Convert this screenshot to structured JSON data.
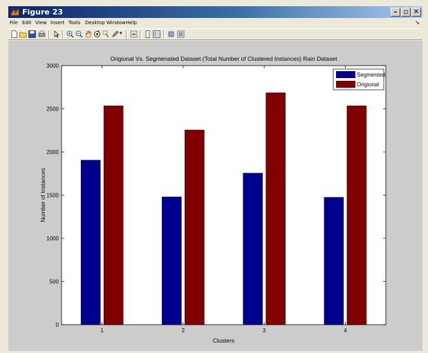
{
  "window": {
    "title": "Figure 23",
    "colors": {
      "titlebar_start": "#0a246a",
      "titlebar_end": "#a6caf0",
      "figure_bg": "#cccccc"
    }
  },
  "menu": {
    "items": [
      "File",
      "Edit",
      "View",
      "Insert",
      "Tools",
      "Desktop",
      "Window",
      "Help"
    ]
  },
  "toolbar": {
    "icons": [
      "new-figure-icon",
      "open-file-icon",
      "save-icon",
      "print-icon",
      "pointer-icon",
      "zoom-in-icon",
      "zoom-out-icon",
      "pan-icon",
      "rotate-icon",
      "data-cursor-icon",
      "brush-icon",
      "link-icon",
      "colorbar-icon",
      "legend-icon",
      "hide-plot-tools-icon",
      "show-plot-tools-icon"
    ]
  },
  "chart_data": {
    "type": "bar",
    "title": "Origional Vs. Segmenated Dataset (Total Number of Clustered Instances) Rain Dataset",
    "xlabel": "Clusters",
    "ylabel": "Number of Instances",
    "categories": [
      "1",
      "2",
      "3",
      "4"
    ],
    "series": [
      {
        "name": "Segmented",
        "color": "#00008f",
        "values": [
          1905,
          1480,
          1755,
          1475
        ]
      },
      {
        "name": "Origional",
        "color": "#800000",
        "values": [
          2535,
          2255,
          2685,
          2535
        ]
      }
    ],
    "ylim": [
      0,
      3000
    ],
    "yticks": [
      0,
      500,
      1000,
      1500,
      2000,
      2500,
      3000
    ],
    "legend_position": "top-right",
    "grid": false
  }
}
